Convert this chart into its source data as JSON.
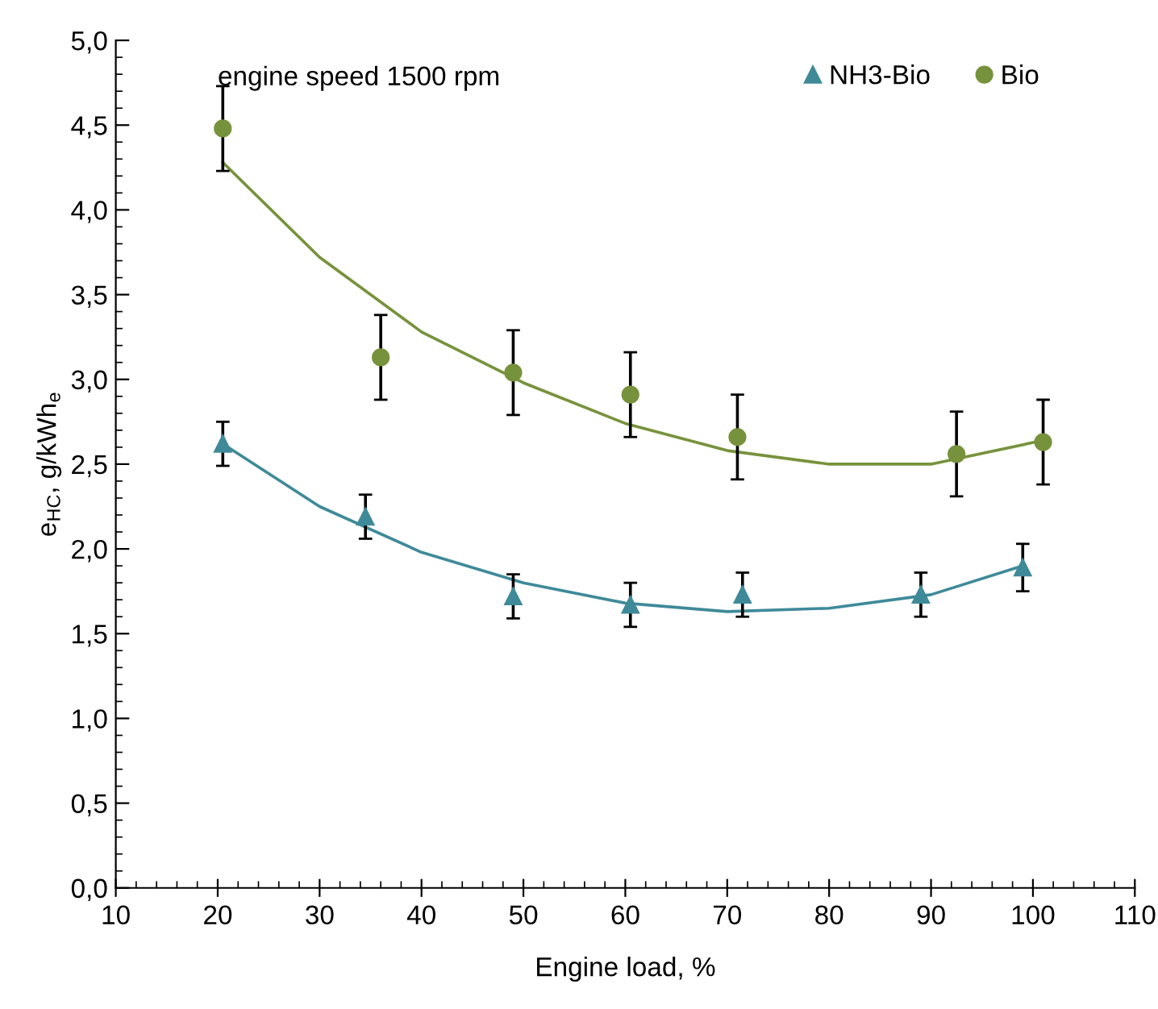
{
  "chart_data": {
    "type": "scatter",
    "xlabel": "Engine load, %",
    "ylabel": "e$_{HC}$, g/kWh$_{e}$",
    "annotations": [
      "engine speed 1500 rpm"
    ],
    "xlim": [
      10,
      110
    ],
    "xticks": [
      10,
      20,
      30,
      40,
      50,
      60,
      70,
      80,
      90,
      100,
      110
    ],
    "ylim": [
      0,
      5
    ],
    "yticks": [
      {
        "value": 0,
        "label": "0,0"
      },
      {
        "value": 0.5,
        "label": "0,5"
      },
      {
        "value": 1,
        "label": "1,0"
      },
      {
        "value": 1.5,
        "label": "1,5"
      },
      {
        "value": 2,
        "label": "2,0"
      },
      {
        "value": 2.5,
        "label": "2,5"
      },
      {
        "value": 3,
        "label": "3,0"
      },
      {
        "value": 3.5,
        "label": "3,5"
      },
      {
        "value": 4,
        "label": "4,0"
      },
      {
        "value": 4.5,
        "label": "4,5"
      },
      {
        "value": 5,
        "label": "5,0"
      }
    ],
    "grid": false,
    "legend": "top right",
    "series": [
      {
        "name": "NH3-Bio",
        "marker": "triangle",
        "color": "#3f8a99",
        "x": [
          20.5,
          34.5,
          49,
          60.5,
          71.5,
          89,
          99
        ],
        "values": [
          2.62,
          2.19,
          1.72,
          1.67,
          1.73,
          1.73,
          1.89
        ],
        "errors": [
          0.13,
          0.13,
          0.13,
          0.13,
          0.13,
          0.13,
          0.14
        ]
      },
      {
        "name": "Bio",
        "marker": "circle",
        "color": "#77923c",
        "x": [
          20.5,
          36,
          49,
          60.5,
          71,
          92.5,
          101
        ],
        "values": [
          4.48,
          3.13,
          3.04,
          2.91,
          2.66,
          2.56,
          2.63
        ],
        "errors": [
          0.25,
          0.25,
          0.25,
          0.25,
          0.25,
          0.25,
          0.25
        ]
      },
      {
        "type": "line",
        "marker": "none",
        "color": "#3f8a99",
        "x": [
          20.5,
          30,
          40,
          50,
          60,
          70,
          80,
          90,
          99
        ],
        "values": [
          2.62,
          2.25,
          1.98,
          1.8,
          1.68,
          1.63,
          1.65,
          1.73,
          1.9
        ]
      },
      {
        "type": "line",
        "marker": "none",
        "color": "#77923c",
        "x": [
          20.5,
          30,
          40,
          50,
          60,
          70,
          80,
          90,
          101
        ],
        "values": [
          4.28,
          3.72,
          3.28,
          2.98,
          2.74,
          2.58,
          2.5,
          2.5,
          2.64
        ]
      }
    ]
  }
}
